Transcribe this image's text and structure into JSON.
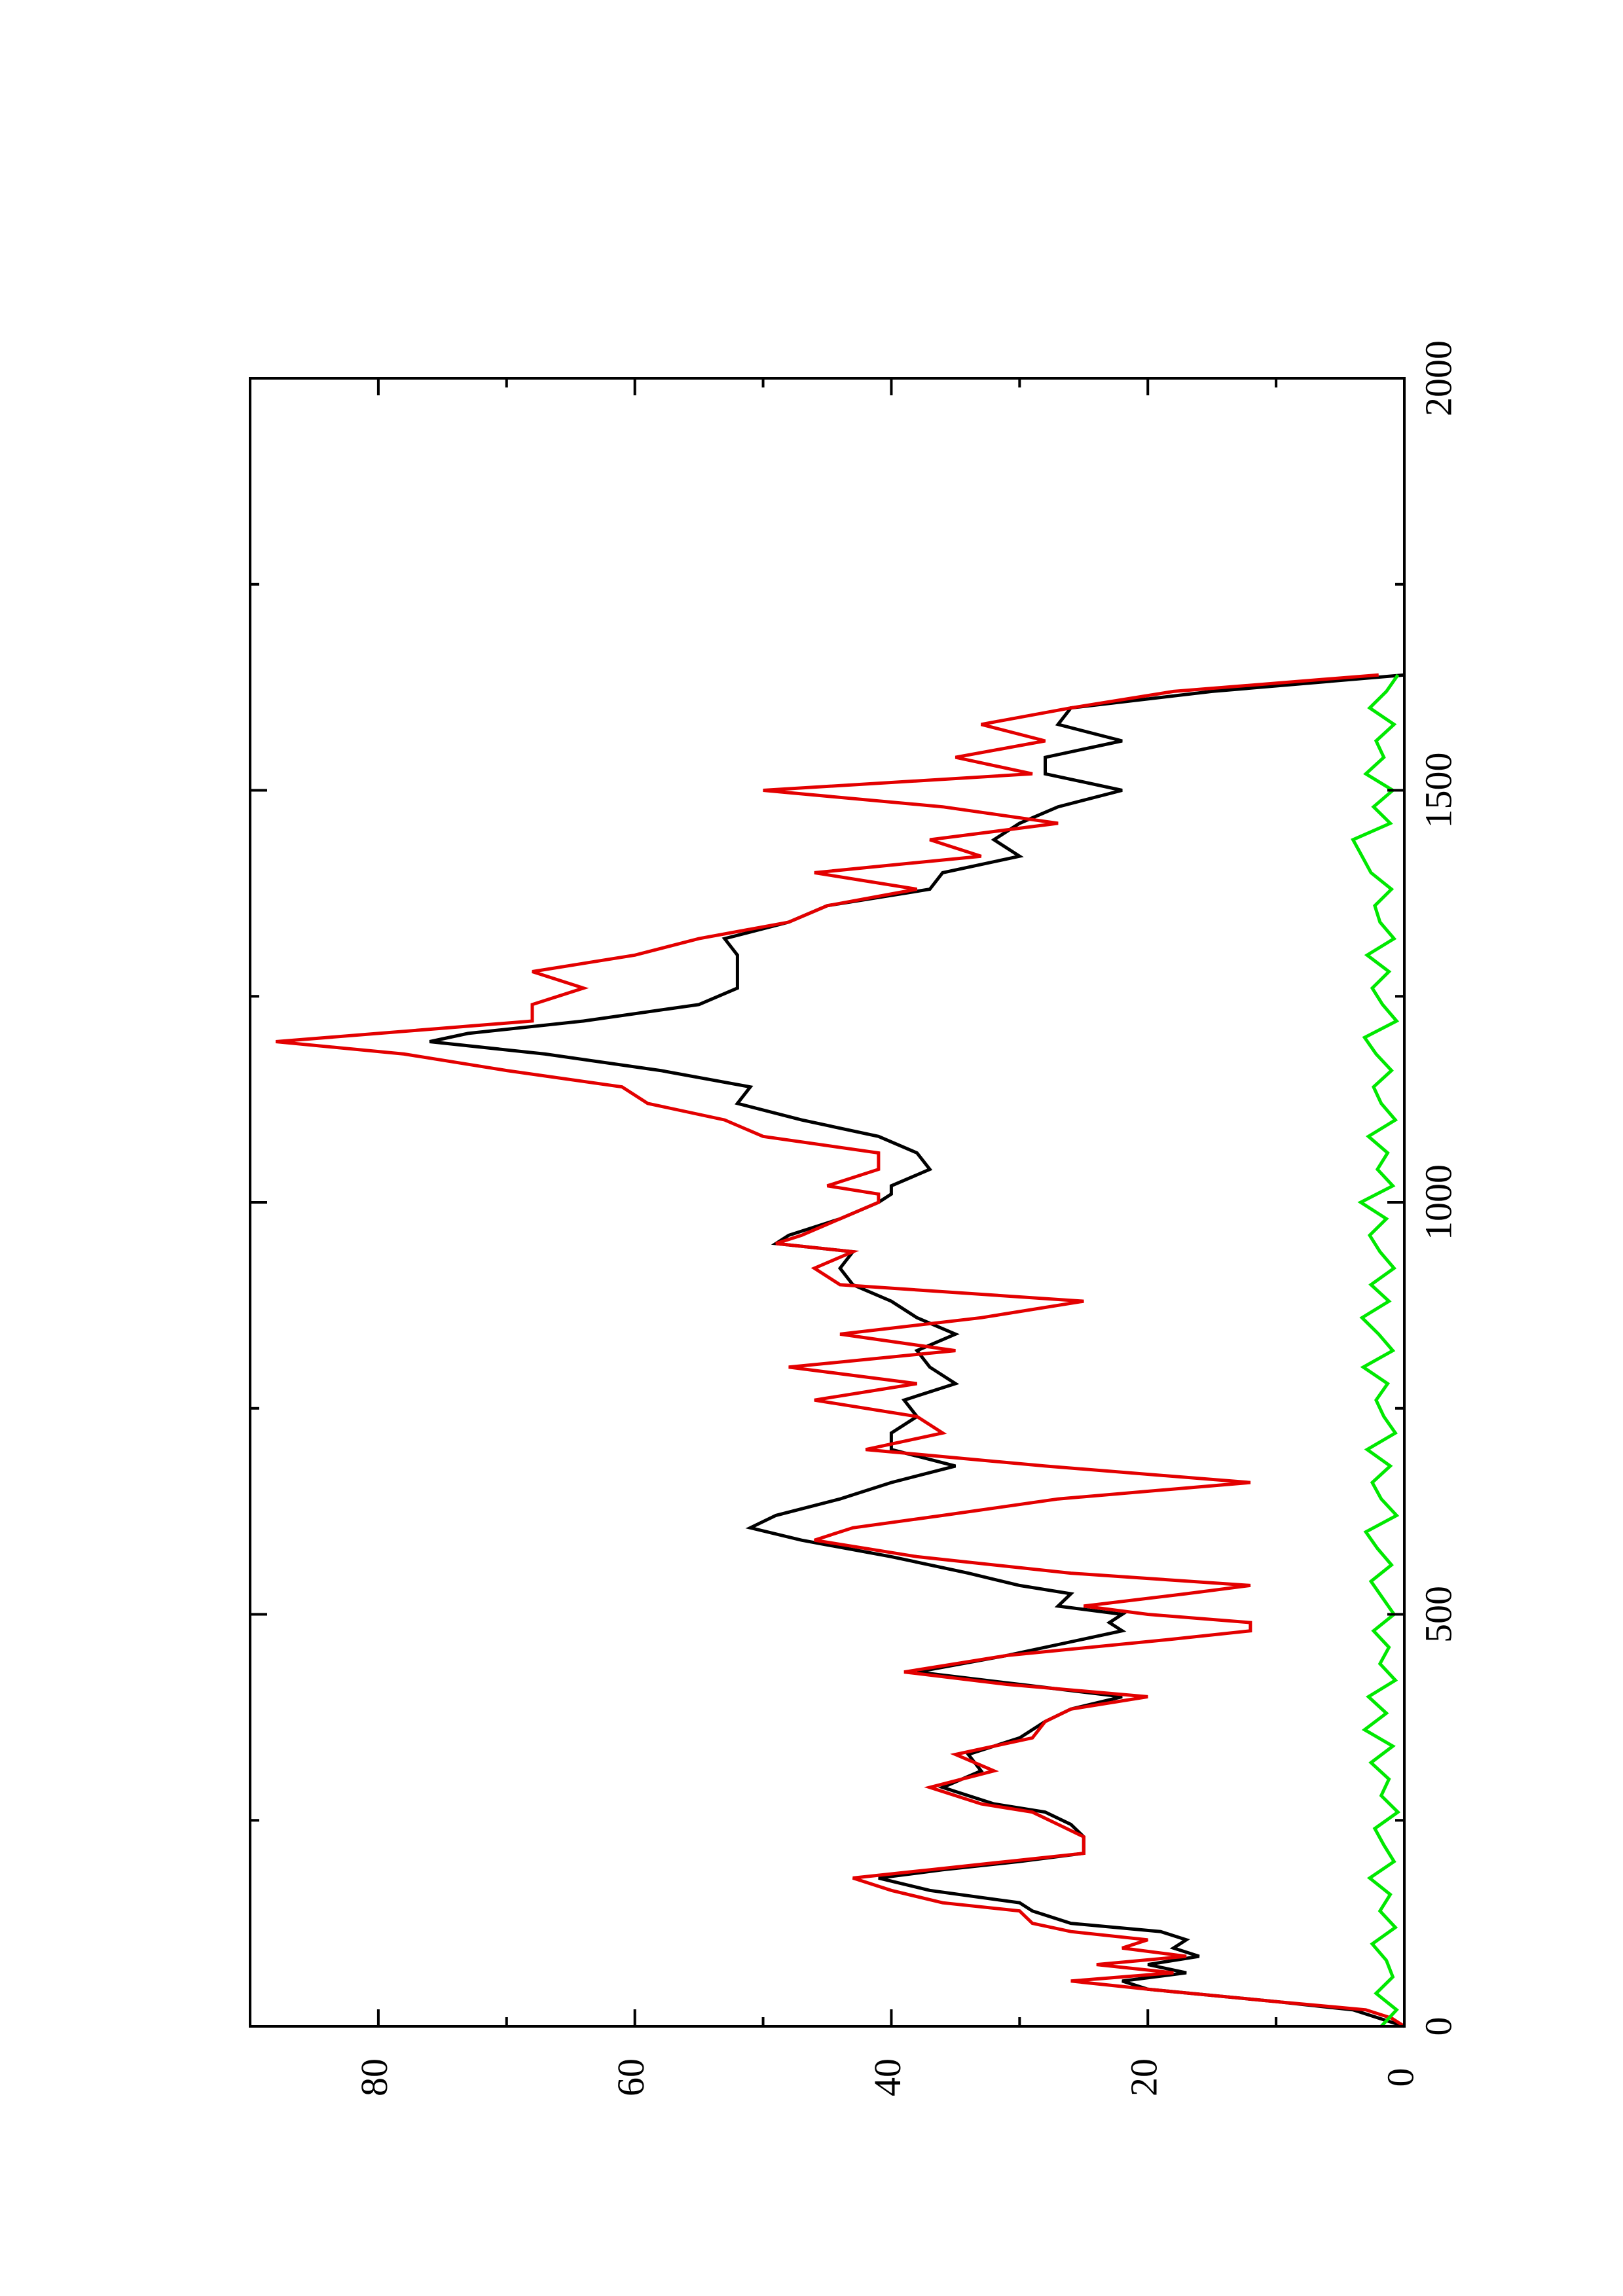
{
  "chart_data": {
    "type": "line",
    "orientation": "rotated-90-counterclockwise",
    "title": "",
    "xlabel": "",
    "ylabel": "",
    "xlim": [
      0,
      2000
    ],
    "ylim": [
      0,
      90
    ],
    "x_ticks_major": [
      0,
      500,
      1000,
      1500,
      2000
    ],
    "x_ticks_minor": [
      250,
      750,
      1250,
      1750
    ],
    "y_ticks_major": [
      0,
      20,
      40,
      60,
      80
    ],
    "y_ticks_minor": [
      10,
      30,
      50,
      70
    ],
    "x_tick_labels": [
      "0",
      "500",
      "1000",
      "1500",
      "2000"
    ],
    "y_tick_labels": [
      "0",
      "20",
      "40",
      "60",
      "80"
    ],
    "grid": false,
    "legend": "none",
    "colors": {
      "frame": "#000000"
    },
    "series": [
      {
        "color": "#000000",
        "x": [
          0,
          10,
          20,
          30,
          45,
          55,
          65,
          75,
          85,
          95,
          105,
          115,
          125,
          140,
          150,
          165,
          180,
          190,
          200,
          210,
          230,
          245,
          260,
          270,
          290,
          310,
          330,
          350,
          370,
          385,
          400,
          415,
          430,
          450,
          470,
          480,
          490,
          500,
          510,
          525,
          535,
          550,
          570,
          590,
          605,
          620,
          640,
          660,
          680,
          700,
          720,
          740,
          760,
          780,
          800,
          820,
          840,
          860,
          880,
          900,
          920,
          940,
          950,
          960,
          980,
          1000,
          1010,
          1020,
          1040,
          1060,
          1080,
          1100,
          1120,
          1140,
          1160,
          1180,
          1195,
          1205,
          1220,
          1240,
          1260,
          1280,
          1300,
          1320,
          1340,
          1360,
          1380,
          1400,
          1420,
          1440,
          1460,
          1480,
          1500,
          1520,
          1540,
          1560,
          1580,
          1600,
          1620,
          1640
        ],
        "y": [
          0,
          2,
          4,
          10,
          20,
          22,
          17,
          20,
          16,
          18,
          17,
          19,
          26,
          29,
          30,
          37,
          41,
          36,
          30,
          25,
          25,
          26,
          28,
          32,
          36,
          33,
          34,
          30,
          28,
          26,
          22,
          30,
          38,
          31,
          25,
          22,
          23,
          22,
          27,
          26,
          30,
          34,
          40,
          47,
          51,
          49,
          44,
          40,
          35,
          40,
          40,
          38,
          39,
          35,
          37,
          38,
          35,
          38,
          40,
          43,
          44,
          43,
          49,
          48,
          44,
          41,
          40,
          40,
          37,
          38,
          41,
          47,
          52,
          51,
          58,
          67,
          76,
          73,
          64,
          55,
          52,
          52,
          52,
          53,
          48,
          45,
          37,
          36,
          30,
          32,
          30,
          27,
          22,
          28,
          28,
          22,
          27,
          26,
          15,
          0
        ]
      },
      {
        "color": "#e30000",
        "x": [
          0,
          10,
          20,
          30,
          45,
          55,
          65,
          75,
          85,
          95,
          105,
          115,
          125,
          140,
          150,
          165,
          180,
          190,
          200,
          210,
          230,
          245,
          260,
          270,
          290,
          310,
          330,
          350,
          370,
          385,
          400,
          415,
          430,
          450,
          470,
          480,
          490,
          500,
          510,
          525,
          535,
          550,
          570,
          590,
          605,
          620,
          640,
          660,
          680,
          700,
          720,
          740,
          760,
          780,
          800,
          820,
          840,
          860,
          880,
          900,
          920,
          940,
          950,
          960,
          980,
          1000,
          1010,
          1020,
          1040,
          1060,
          1080,
          1100,
          1120,
          1140,
          1160,
          1180,
          1195,
          1205,
          1220,
          1240,
          1260,
          1280,
          1300,
          1320,
          1340,
          1360,
          1380,
          1400,
          1420,
          1440,
          1460,
          1480,
          1500,
          1520,
          1540,
          1560,
          1580,
          1600,
          1620,
          1640
        ],
        "y": [
          0,
          1,
          3,
          10,
          20,
          26,
          18,
          24,
          17,
          22,
          20,
          26,
          29,
          30,
          36,
          40,
          43,
          37,
          31,
          25,
          25,
          27,
          29,
          33,
          37,
          32,
          35,
          29,
          28,
          26,
          20,
          31,
          39,
          31,
          18,
          12,
          12,
          20,
          25,
          17,
          12,
          26,
          38,
          46,
          43,
          36,
          27,
          12,
          28,
          42,
          36,
          38,
          46,
          38,
          48,
          35,
          44,
          33,
          25,
          44,
          46,
          43,
          49,
          47,
          44,
          41,
          41,
          45,
          41,
          41,
          50,
          53,
          59,
          61,
          70,
          78,
          88,
          80,
          68,
          68,
          64,
          68,
          60,
          55,
          48,
          45,
          38,
          46,
          33,
          37,
          27,
          36,
          50,
          29,
          35,
          28,
          33,
          26,
          18,
          2
        ]
      },
      {
        "color": "#00e800",
        "x": [
          0,
          20,
          40,
          60,
          80,
          100,
          120,
          140,
          160,
          180,
          200,
          220,
          240,
          260,
          280,
          300,
          320,
          340,
          360,
          380,
          400,
          420,
          440,
          460,
          480,
          500,
          520,
          540,
          560,
          580,
          600,
          620,
          640,
          660,
          680,
          700,
          720,
          740,
          760,
          780,
          800,
          820,
          840,
          860,
          880,
          900,
          920,
          940,
          960,
          980,
          1000,
          1020,
          1040,
          1060,
          1080,
          1100,
          1120,
          1140,
          1160,
          1180,
          1200,
          1220,
          1240,
          1260,
          1280,
          1300,
          1320,
          1340,
          1360,
          1380,
          1400,
          1420,
          1440,
          1460,
          1480,
          1500,
          1520,
          1540,
          1560,
          1580,
          1600,
          1620,
          1640
        ],
        "y": [
          1.8,
          0.6,
          2.2,
          0.9,
          1.4,
          2.5,
          0.7,
          1.9,
          1.1,
          2.7,
          0.8,
          1.6,
          2.3,
          0.5,
          1.8,
          1.2,
          2.6,
          0.9,
          3.1,
          1.4,
          2.8,
          0.7,
          1.9,
          1.2,
          2.4,
          0.8,
          1.7,
          2.6,
          1.0,
          2.1,
          3.0,
          0.6,
          1.8,
          2.5,
          1.1,
          2.9,
          0.7,
          1.6,
          2.2,
          1.3,
          3.2,
          0.9,
          2.0,
          3.3,
          1.2,
          2.6,
          0.8,
          1.9,
          2.7,
          1.4,
          3.4,
          0.9,
          2.1,
          1.3,
          2.8,
          0.7,
          1.8,
          2.4,
          1.0,
          2.2,
          3.1,
          0.6,
          1.7,
          2.5,
          1.2,
          2.9,
          0.8,
          1.9,
          2.3,
          1.0,
          2.6,
          3.3,
          4.0,
          1.1,
          2.4,
          0.9,
          3.0,
          1.6,
          2.2,
          0.8,
          2.7,
          1.4,
          0.5
        ]
      }
    ]
  }
}
